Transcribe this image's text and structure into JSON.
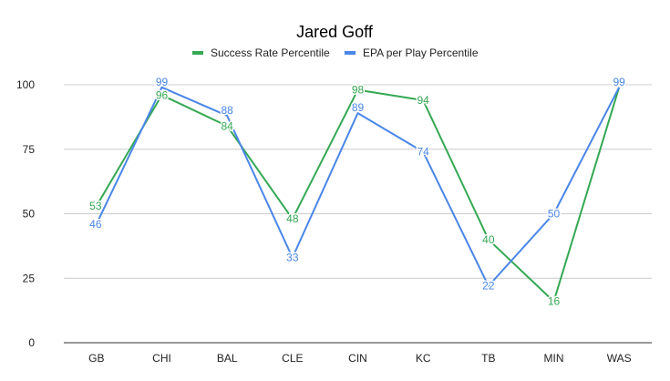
{
  "chart_data": {
    "type": "line",
    "title": "Jared Goff",
    "xlabel": "",
    "ylabel": "",
    "categories": [
      "GB",
      "CHI",
      "BAL",
      "CLE",
      "CIN",
      "KC",
      "TB",
      "MIN",
      "WAS"
    ],
    "ylim": [
      0,
      100
    ],
    "yticks": [
      0,
      25,
      50,
      75,
      100
    ],
    "grid": true,
    "legend_position": "top",
    "series": [
      {
        "name": "Success Rate Percentile",
        "color": "#34a853",
        "values": [
          53,
          96,
          84,
          48,
          98,
          94,
          40,
          16,
          99
        ],
        "labels_shown": [
          true,
          true,
          true,
          true,
          true,
          true,
          true,
          true,
          false
        ]
      },
      {
        "name": "EPA per Play Percentile",
        "color": "#4a86e8",
        "values": [
          46,
          99,
          88,
          33,
          89,
          74,
          22,
          50,
          99
        ],
        "labels_shown": [
          true,
          true,
          true,
          true,
          true,
          true,
          true,
          true,
          true
        ]
      }
    ]
  }
}
